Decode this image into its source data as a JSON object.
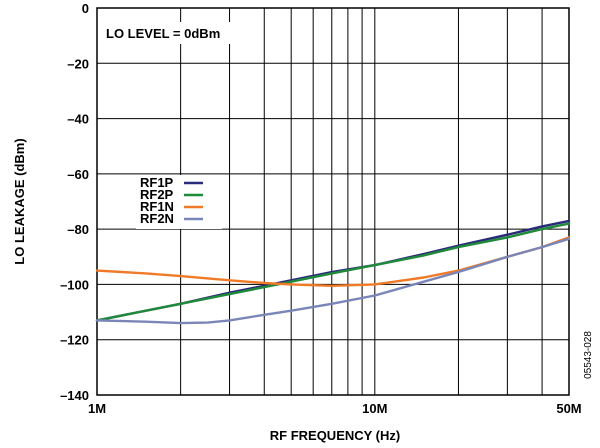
{
  "chart_data": {
    "type": "line",
    "xscale": "log",
    "xlabel": "RF FREQUENCY (Hz)",
    "ylabel": "LO LEAKAGE (dBm)",
    "xlim": [
      1000000,
      50000000
    ],
    "ylim": [
      -140,
      0
    ],
    "grid": true,
    "x_ticks": [
      {
        "value": 1000000,
        "label": "1M"
      },
      {
        "value": 10000000,
        "label": "10M"
      },
      {
        "value": 50000000,
        "label": "50M"
      }
    ],
    "y_ticks": [
      {
        "value": 0,
        "label": "0"
      },
      {
        "value": -20,
        "label": "–20"
      },
      {
        "value": -40,
        "label": "–40"
      },
      {
        "value": -60,
        "label": "–60"
      },
      {
        "value": -80,
        "label": "–80"
      },
      {
        "value": -100,
        "label": "–100"
      },
      {
        "value": -120,
        "label": "–120"
      },
      {
        "value": -140,
        "label": "–140"
      }
    ],
    "annotation": "LO LEVEL = 0dBm",
    "figure_code": "05543-028",
    "legend_position": "center-left",
    "series": [
      {
        "name": "RF1P",
        "color": "#2b2a7a",
        "points": [
          [
            1000000,
            -113
          ],
          [
            2000000,
            -107
          ],
          [
            3000000,
            -103
          ],
          [
            5000000,
            -98.5
          ],
          [
            7000000,
            -95.5
          ],
          [
            10000000,
            -93
          ],
          [
            15000000,
            -89
          ],
          [
            20000000,
            -86
          ],
          [
            30000000,
            -82
          ],
          [
            40000000,
            -79
          ],
          [
            50000000,
            -77
          ]
        ]
      },
      {
        "name": "RF2P",
        "color": "#1f8a3a",
        "points": [
          [
            1000000,
            -113
          ],
          [
            2000000,
            -107
          ],
          [
            3000000,
            -103.5
          ],
          [
            5000000,
            -99
          ],
          [
            7000000,
            -96
          ],
          [
            10000000,
            -93
          ],
          [
            15000000,
            -89.5
          ],
          [
            20000000,
            -86.5
          ],
          [
            30000000,
            -83
          ],
          [
            40000000,
            -80
          ],
          [
            50000000,
            -78
          ]
        ]
      },
      {
        "name": "RF1N",
        "color": "#f07a28",
        "points": [
          [
            1000000,
            -95
          ],
          [
            1500000,
            -96
          ],
          [
            2000000,
            -97
          ],
          [
            3000000,
            -98.5
          ],
          [
            4000000,
            -99.5
          ],
          [
            5000000,
            -100
          ],
          [
            7000000,
            -100.5
          ],
          [
            10000000,
            -100
          ],
          [
            15000000,
            -97.5
          ],
          [
            20000000,
            -95
          ],
          [
            30000000,
            -90
          ],
          [
            40000000,
            -86.5
          ],
          [
            50000000,
            -83
          ]
        ]
      },
      {
        "name": "RF2N",
        "color": "#7a86b8",
        "points": [
          [
            1000000,
            -113
          ],
          [
            1500000,
            -113.5
          ],
          [
            2000000,
            -114
          ],
          [
            2500000,
            -113.8
          ],
          [
            3000000,
            -113
          ],
          [
            4000000,
            -111
          ],
          [
            5000000,
            -109.5
          ],
          [
            7000000,
            -107
          ],
          [
            10000000,
            -104
          ],
          [
            15000000,
            -99
          ],
          [
            20000000,
            -95.5
          ],
          [
            30000000,
            -90
          ],
          [
            40000000,
            -86.5
          ],
          [
            50000000,
            -83.5
          ]
        ]
      }
    ]
  }
}
